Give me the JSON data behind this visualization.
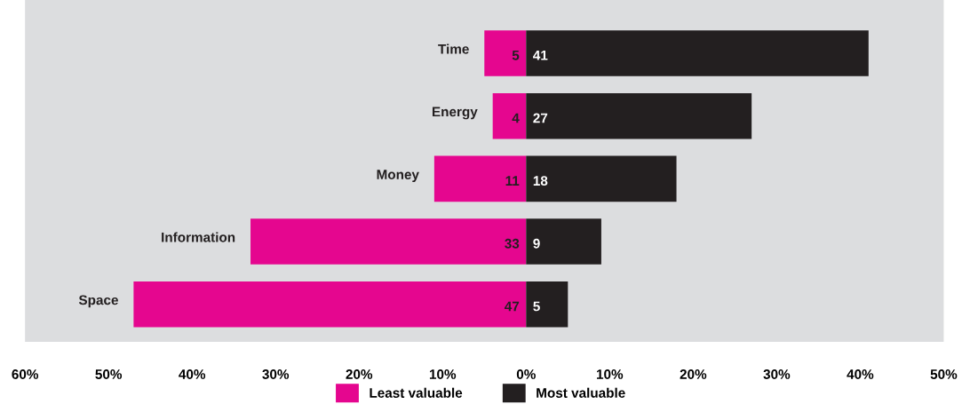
{
  "chart_data": {
    "type": "bar",
    "orientation": "horizontal",
    "categories": [
      "Time",
      "Energy",
      "Money",
      "Information",
      "Space"
    ],
    "series": [
      {
        "name": "Least valuable",
        "color": "#e5068f",
        "base": [
          -5,
          -4,
          -11,
          -33,
          -47
        ],
        "values": [
          5,
          4,
          11,
          33,
          47
        ],
        "value_labels": [
          "5",
          "4",
          "11",
          "33",
          "47"
        ]
      },
      {
        "name": "Most valuable",
        "color": "#231f20",
        "values": [
          41,
          27,
          18,
          9,
          5
        ],
        "value_labels": [
          "41",
          "27",
          "18",
          "9",
          "5"
        ]
      }
    ],
    "xlim": [
      -60,
      50
    ],
    "xticks": [
      {
        "value": -60,
        "label": "60%"
      },
      {
        "value": -50,
        "label": "50%"
      },
      {
        "value": -40,
        "label": "40%"
      },
      {
        "value": -30,
        "label": "30%"
      },
      {
        "value": -20,
        "label": "20%"
      },
      {
        "value": -10,
        "label": "10%"
      },
      {
        "value": 0,
        "label": "0%"
      },
      {
        "value": 10,
        "label": "10%"
      },
      {
        "value": 20,
        "label": "20%"
      },
      {
        "value": 30,
        "label": "30%"
      },
      {
        "value": 40,
        "label": "40%"
      },
      {
        "value": 50,
        "label": "50%"
      }
    ],
    "grid": false,
    "legend": "bottom"
  }
}
